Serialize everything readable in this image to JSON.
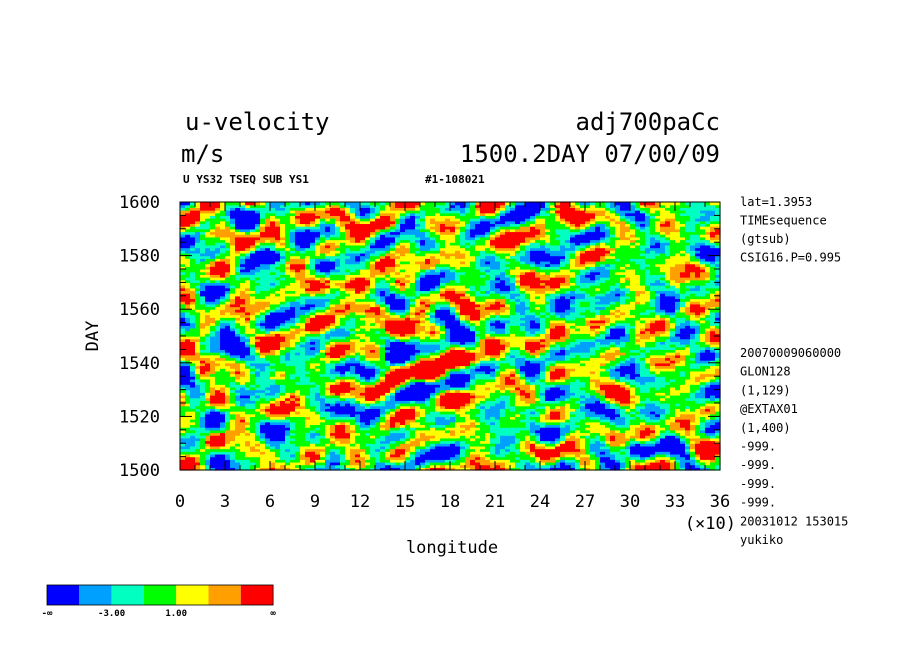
{
  "header": {
    "variable": "u-velocity",
    "units": "m/s",
    "run_name": "adj700paCc",
    "time_stamp": "1500.2DAY 07/00/09",
    "subtitle": "U YS32 TSEQ SUB YS1",
    "record_id": "#1-108021"
  },
  "side_notes": {
    "top": [
      "lat=1.3953",
      "TIMEsequence",
      "(gtsub)",
      "CSIG16.P=0.995"
    ],
    "bottom": [
      "20070009060000",
      "GLON128",
      "(1,129)",
      "@EXTAX01",
      "(1,400)",
      "-999.",
      "-999.",
      "-999.",
      "-999.",
      "20031012 153015",
      "yukiko"
    ]
  },
  "chart_data": {
    "type": "heatmap",
    "xlabel": "longitude",
    "x_multiplier_label": "(×10)",
    "ylabel": "DAY",
    "xlim": [
      0,
      36
    ],
    "ylim": [
      1500,
      1600
    ],
    "x_ticks": [
      0,
      3,
      6,
      9,
      12,
      15,
      18,
      21,
      24,
      27,
      30,
      33,
      36
    ],
    "y_ticks": [
      1500,
      1520,
      1540,
      1560,
      1580,
      1600
    ],
    "grid": false,
    "value_field": "u-velocity (m/s), longitude-time section, field values not printed",
    "colorbar": {
      "colors": [
        "#0000ff",
        "#00a0ff",
        "#00ffc0",
        "#00ff00",
        "#ffff00",
        "#ffa000",
        "#ff0000"
      ],
      "tick_labels": [
        "-∞",
        "-3.00",
        "1.00",
        "∞"
      ]
    },
    "visual_patterns": [
      {
        "x": 11.5,
        "y": 1569,
        "sign": "positive"
      },
      {
        "x": 12.5,
        "y": 1560,
        "sign": "positive"
      },
      {
        "x": 10.5,
        "y": 1554,
        "sign": "positive"
      },
      {
        "x": 16.5,
        "y": 1536,
        "sign": "positive"
      },
      {
        "x": 18.5,
        "y": 1527,
        "sign": "positive"
      },
      {
        "x": 19.5,
        "y": 1542,
        "sign": "positive"
      },
      {
        "x": 13.5,
        "y": 1592,
        "sign": "positive"
      },
      {
        "x": 6.5,
        "y": 1580,
        "sign": "negative"
      },
      {
        "x": 24.5,
        "y": 1522,
        "sign": "negative"
      },
      {
        "x": 30.5,
        "y": 1508,
        "sign": "negative"
      },
      {
        "x": 3.5,
        "y": 1545,
        "sign": "negative"
      },
      {
        "x": 27,
        "y": 1565,
        "sign": "negative"
      }
    ]
  }
}
